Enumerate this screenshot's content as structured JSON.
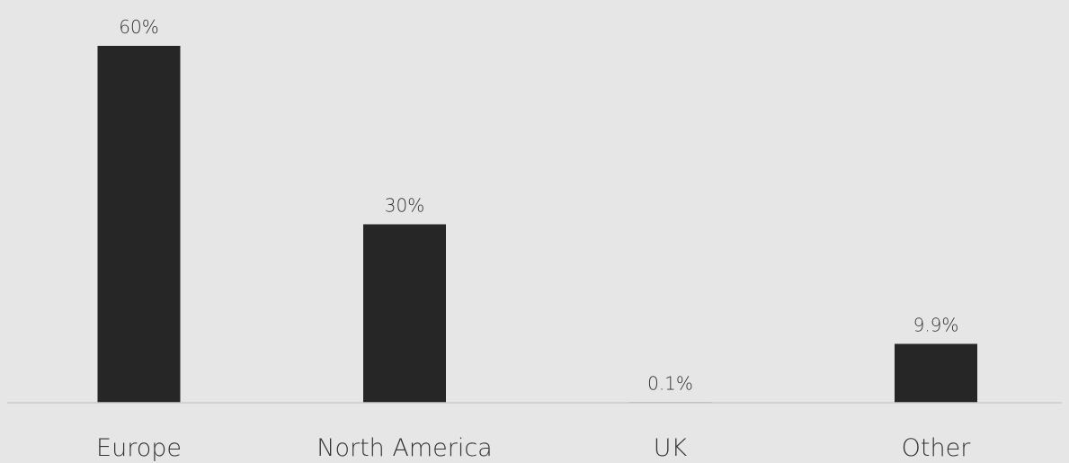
{
  "chart_data": {
    "type": "bar",
    "categories": [
      "Europe",
      "North America",
      "UK",
      "Other"
    ],
    "values": [
      60,
      30,
      0.1,
      9.9
    ],
    "value_labels": [
      "60%",
      "30%",
      "0.1%",
      "9.9%"
    ],
    "title": "",
    "xlabel": "",
    "ylabel": "",
    "ylim": [
      0,
      60
    ],
    "grid": false,
    "legend": "none",
    "colors": {
      "background": "#e6e6e6",
      "bar": "#262626",
      "axis": "#cccccc",
      "text": "#333333"
    }
  }
}
